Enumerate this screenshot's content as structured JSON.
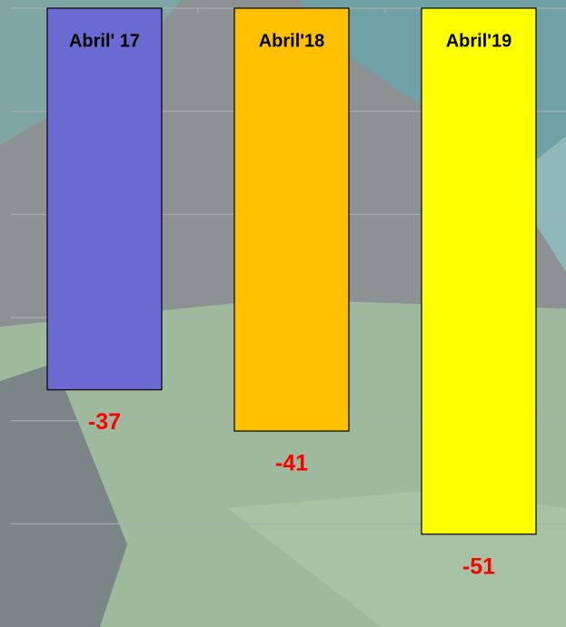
{
  "chart_data": {
    "type": "bar",
    "categories": [
      "Abril' 17",
      "Abril'18",
      "Abril'19"
    ],
    "values": [
      -37,
      -41,
      -51
    ],
    "colors": [
      "#6a6ad2",
      "#ffc000",
      "#ffff00"
    ],
    "ylim": [
      -60,
      0
    ],
    "yticks": [
      0,
      -10,
      -20,
      -30,
      -40,
      -50
    ],
    "grid": true
  }
}
